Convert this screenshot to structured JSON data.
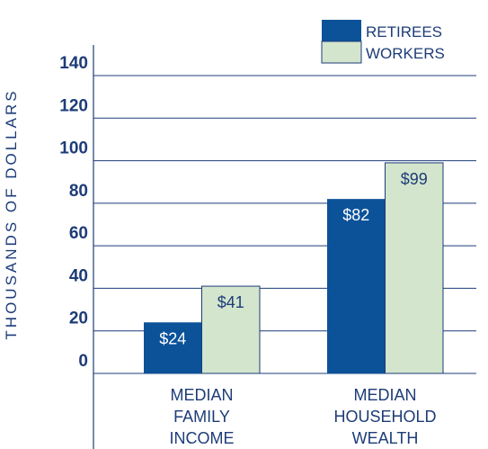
{
  "chart_data": {
    "type": "bar",
    "categories": [
      "MEDIAN FAMILY INCOME",
      "MEDIAN HOUSEHOLD WEALTH"
    ],
    "series": [
      {
        "name": "RETIREES",
        "color": "#0b5299",
        "values": [
          24,
          82
        ],
        "value_labels": [
          "$24",
          "$82"
        ]
      },
      {
        "name": "WORKERS",
        "color": "#d3e5cd",
        "values": [
          41,
          99
        ],
        "value_labels": [
          "$41",
          "$99"
        ]
      }
    ],
    "ylabel": "THOUSANDS OF DOLLARS",
    "ylim": [
      0,
      140
    ],
    "yticks": [
      0,
      20,
      40,
      60,
      80,
      100,
      120,
      140
    ],
    "grid": true,
    "legend": "top-right"
  }
}
